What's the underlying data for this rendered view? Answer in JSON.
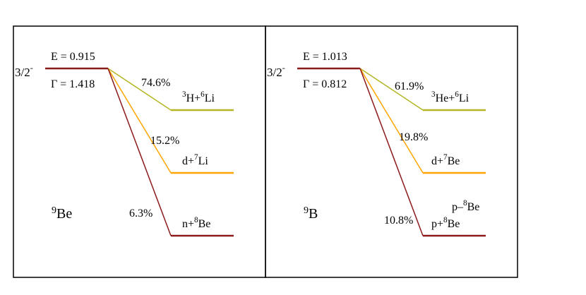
{
  "colors": {
    "ground": "#8b1a1a",
    "channel_gold": "#b5b524",
    "channel_orange": "#ffa500",
    "channel_red": "#8b1a1a",
    "frame": "#000000"
  },
  "panels": [
    {
      "nucleus_mass": "9",
      "nucleus_symbol": "Be",
      "state": {
        "spin": "3/2",
        "parity": "-"
      },
      "energy_label": "E = 0.915",
      "width_label": "Γ = 1.418",
      "channels": [
        {
          "percent": "74.6%",
          "label": [
            [
              "3",
              "sup"
            ],
            [
              "H+",
              "base"
            ],
            [
              "6",
              "sup"
            ],
            [
              "Li",
              "base"
            ]
          ],
          "color": "channel_gold"
        },
        {
          "percent": "15.2%",
          "label": [
            [
              "d+",
              "base"
            ],
            [
              "7",
              "sup"
            ],
            [
              "Li",
              "base"
            ]
          ],
          "color": "channel_orange"
        },
        {
          "percent": "6.3%",
          "label": [
            [
              "n+",
              "base"
            ],
            [
              "8",
              "sup"
            ],
            [
              "Be",
              "base"
            ]
          ],
          "color": "channel_red"
        }
      ],
      "extra_label": null
    },
    {
      "nucleus_mass": "9",
      "nucleus_symbol": "B",
      "state": {
        "spin": "3/2",
        "parity": "-"
      },
      "energy_label": "E = 1.013",
      "width_label": "Γ = 0.812",
      "channels": [
        {
          "percent": "61.9%",
          "label": [
            [
              "3",
              "sup"
            ],
            [
              "He+",
              "base"
            ],
            [
              "6",
              "sup"
            ],
            [
              "Li",
              "base"
            ]
          ],
          "color": "channel_gold"
        },
        {
          "percent": "19.8%",
          "label": [
            [
              "d+",
              "base"
            ],
            [
              "7",
              "sup"
            ],
            [
              "Be",
              "base"
            ]
          ],
          "color": "channel_orange"
        },
        {
          "percent": "10.8%",
          "label": [
            [
              "p+",
              "base"
            ],
            [
              "8",
              "sup"
            ],
            [
              "Be",
              "base"
            ]
          ],
          "color": "channel_red"
        }
      ],
      "extra_label": [
        [
          "p–",
          "base"
        ],
        [
          "8",
          "sup"
        ],
        [
          "Be",
          "base"
        ]
      ]
    }
  ]
}
